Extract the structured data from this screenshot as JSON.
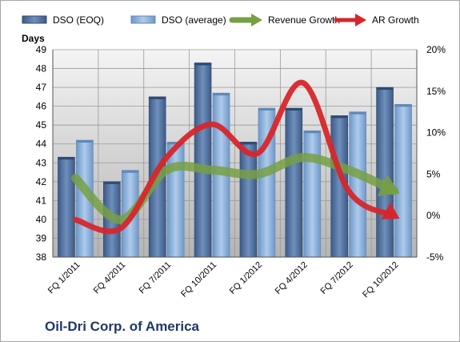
{
  "chart_data": {
    "type": "bar",
    "title": "Oil-Dri Corp. of America",
    "ylabel": "Days",
    "ylim": [
      38,
      49
    ],
    "y2lim": [
      -5,
      20
    ],
    "y2_unit": "%",
    "categories": [
      "FQ 1/2011",
      "FQ 4/2011",
      "FQ 7/2011",
      "FQ 10/2011",
      "FQ 1/2012",
      "FQ 4/2012",
      "FQ 7/2012",
      "FQ 10/2012"
    ],
    "y_ticks": [
      "38",
      "39",
      "40",
      "41",
      "42",
      "43",
      "44",
      "45",
      "46",
      "47",
      "48",
      "49"
    ],
    "y2_ticks": [
      "-5%",
      "0%",
      "5%",
      "10%",
      "15%",
      "20%"
    ],
    "grid": true,
    "legend_position": "top",
    "series": [
      {
        "name": "DSO (EOQ)",
        "type": "bar",
        "axis": "left",
        "color": "#4f6f9f",
        "values": [
          43.3,
          42.0,
          46.5,
          48.3,
          44.1,
          45.9,
          45.5,
          47.0
        ]
      },
      {
        "name": "DSO (average)",
        "type": "bar",
        "axis": "left",
        "color": "#8fb4dc",
        "values": [
          44.2,
          42.6,
          44.1,
          46.7,
          45.9,
          44.7,
          45.7,
          46.1
        ]
      },
      {
        "name": "Revenue Growth",
        "type": "line",
        "axis": "right",
        "color": "#77a043",
        "values": [
          4.5,
          -0.5,
          5.5,
          5.5,
          5.0,
          7.0,
          5.5,
          3.0
        ]
      },
      {
        "name": "AR Growth",
        "type": "line",
        "axis": "right",
        "color": "#d7262b",
        "values": [
          -0.5,
          -1.5,
          7.0,
          11.0,
          7.5,
          16.0,
          3.0,
          0.0
        ]
      }
    ]
  }
}
